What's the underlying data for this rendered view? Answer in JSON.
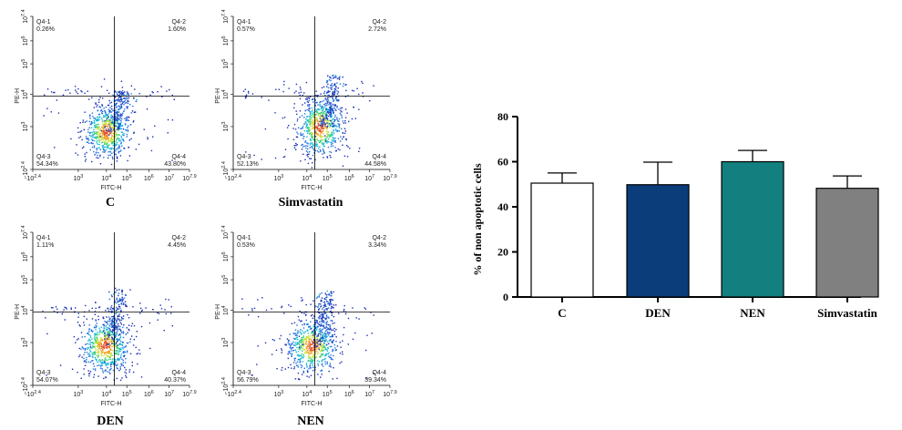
{
  "colors": {
    "axis": "#000000",
    "flow_density": [
      "#1b2fb5",
      "#1f6fe0",
      "#15b7d8",
      "#3fd07a",
      "#c8e23a",
      "#f0a52a",
      "#e34d1f"
    ],
    "bar_C": "#ffffff",
    "bar_DEN": "#0b3d7a",
    "bar_NEN": "#137f7f",
    "bar_Simvastatin": "#808080"
  },
  "flow_plots": [
    {
      "caption": "C",
      "x_label": "FITC-H",
      "y_label": "PE-H",
      "x_ticks": [
        "-10^2.4",
        "10^3",
        "10^4",
        "10^5",
        "10^6",
        "10^7",
        "10^7.9"
      ],
      "y_ticks": [
        "-10^2.4",
        "10^3",
        "10^4",
        "10^5",
        "10^6",
        "10^7.4"
      ],
      "quadrants": [
        {
          "name": "Q4-1",
          "value": "0.26%"
        },
        {
          "name": "Q4-2",
          "value": "1.60%"
        },
        {
          "name": "Q4-3",
          "value": "54.34%"
        },
        {
          "name": "Q4-4",
          "value": "43.80%"
        }
      ]
    },
    {
      "caption": "Simvastatin",
      "x_label": "FITC-H",
      "y_label": "PE-H",
      "x_ticks": [
        "-10^2.4",
        "10^3",
        "10^4",
        "10^5",
        "10^6",
        "10^7",
        "10^7.9"
      ],
      "y_ticks": [
        "-10^2.4",
        "10^3",
        "10^4",
        "10^5",
        "10^6",
        "10^7.4"
      ],
      "quadrants": [
        {
          "name": "Q4-1",
          "value": "0.57%"
        },
        {
          "name": "Q4-2",
          "value": "2.72%"
        },
        {
          "name": "Q4-3",
          "value": "52.13%"
        },
        {
          "name": "Q4-4",
          "value": "44.58%"
        }
      ]
    },
    {
      "caption": "DEN",
      "x_label": "FITC-H",
      "y_label": "PE-H",
      "x_ticks": [
        "-10^2.4",
        "10^3",
        "10^4",
        "10^5",
        "10^6",
        "10^7",
        "10^7.9"
      ],
      "y_ticks": [
        "-10^2.4",
        "10^3",
        "10^4",
        "10^5",
        "10^6",
        "10^7.4"
      ],
      "quadrants": [
        {
          "name": "Q4-1",
          "value": "1.11%"
        },
        {
          "name": "Q4-2",
          "value": "4.45%"
        },
        {
          "name": "Q4-3",
          "value": "54.07%"
        },
        {
          "name": "Q4-4",
          "value": "40.37%"
        }
      ]
    },
    {
      "caption": "NEN",
      "x_label": "FITC-H",
      "y_label": "PE-H",
      "x_ticks": [
        "-10^2.4",
        "10^3",
        "10^4",
        "10^5",
        "10^6",
        "10^7",
        "10^7.9"
      ],
      "y_ticks": [
        "-10^2.4",
        "10^3",
        "10^4",
        "10^5",
        "10^6",
        "10^7.4"
      ],
      "quadrants": [
        {
          "name": "Q4-1",
          "value": "0.53%"
        },
        {
          "name": "Q4-2",
          "value": "3.34%"
        },
        {
          "name": "Q4-3",
          "value": "56.79%"
        },
        {
          "name": "Q4-4",
          "value": "39.34%"
        }
      ]
    }
  ],
  "chart_data": [
    {
      "type": "bar",
      "categories": [
        "C",
        "DEN",
        "NEN",
        "Simvastatin"
      ],
      "values": [
        50.5,
        49.8,
        60.0,
        48.2
      ],
      "errors": [
        4.5,
        10.0,
        5.0,
        5.5
      ],
      "ylabel": "% of non apoptotic cells",
      "xlabel": "",
      "title": "",
      "ylim": [
        0,
        80
      ],
      "yticks": [
        0,
        20,
        40,
        60,
        80
      ],
      "grid": false
    }
  ]
}
